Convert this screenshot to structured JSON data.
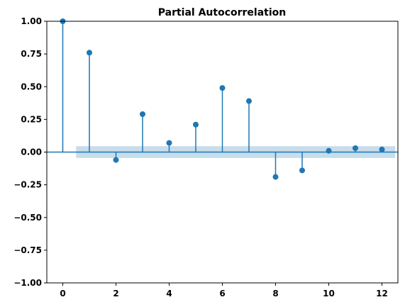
{
  "chart_data": {
    "type": "stem",
    "title": "Partial Autocorrelation",
    "xlabel": "",
    "ylabel": "",
    "x": [
      0,
      1,
      2,
      3,
      4,
      5,
      6,
      7,
      8,
      9,
      10,
      11,
      12
    ],
    "values": [
      1.0,
      0.76,
      -0.06,
      0.29,
      0.07,
      0.21,
      0.49,
      0.39,
      -0.19,
      -0.14,
      0.01,
      0.03,
      0.02
    ],
    "confidence_band": {
      "lower": -0.045,
      "upper": 0.045,
      "x_start": 0.5,
      "x_end": 12.5
    },
    "xlim": [
      -0.6,
      12.6
    ],
    "ylim": [
      -1.0,
      1.0
    ],
    "xticks": [
      0,
      2,
      4,
      6,
      8,
      10,
      12
    ],
    "xtick_labels": [
      "0",
      "2",
      "4",
      "6",
      "8",
      "10",
      "12"
    ],
    "yticks": [
      1.0,
      0.75,
      0.5,
      0.25,
      0.0,
      -0.25,
      -0.5,
      -0.75,
      -1.0
    ],
    "ytick_labels": [
      "1.00",
      "0.75",
      "0.50",
      "0.25",
      "0.00",
      "−0.25",
      "−0.50",
      "−0.75",
      "−1.00"
    ],
    "grid": false,
    "legend": "none",
    "colors": {
      "stem": "#1f77b4",
      "band": "#1f77b4",
      "zero_line": "#1f77b4"
    }
  }
}
